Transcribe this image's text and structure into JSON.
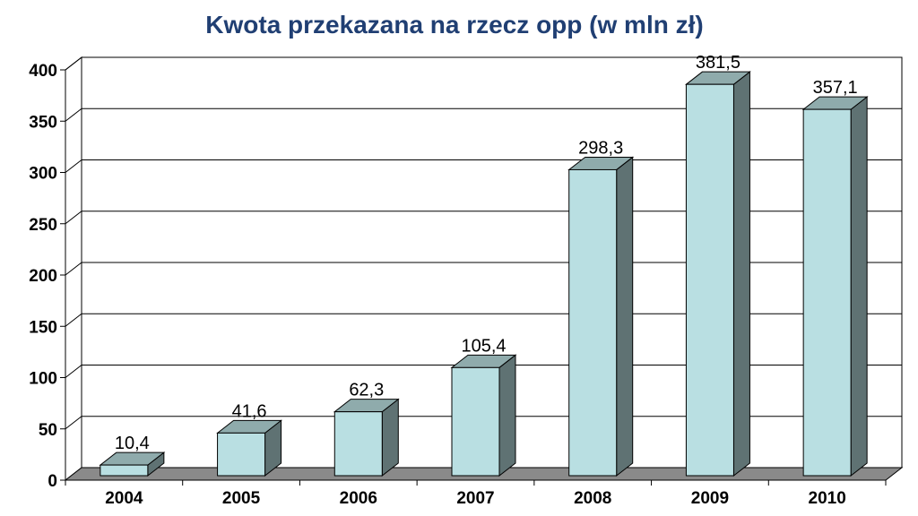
{
  "chart_data": {
    "type": "bar",
    "title": "Kwota przekazana na rzecz opp (w mln zł)",
    "xlabel": "",
    "ylabel": "",
    "categories": [
      "2004",
      "2005",
      "2006",
      "2007",
      "2008",
      "2009",
      "2010"
    ],
    "values": [
      10.4,
      41.6,
      62.3,
      105.4,
      298.3,
      381.5,
      357.1
    ],
    "data_labels": [
      "10,4",
      "41,6",
      "62,3",
      "105,4",
      "298,3",
      "381,5",
      "357,1"
    ],
    "ylim": [
      0,
      400
    ],
    "yticks": [
      "0",
      "50",
      "100",
      "150",
      "200",
      "250",
      "300",
      "350",
      "400"
    ],
    "grid": true,
    "legend": "none",
    "style": "3d-column",
    "colors": {
      "bar_front": "#b9dfe2",
      "bar_top": "#8fabac",
      "bar_side": "#5f7273",
      "floor": "#8a8a8a",
      "title": "#203f73"
    }
  }
}
